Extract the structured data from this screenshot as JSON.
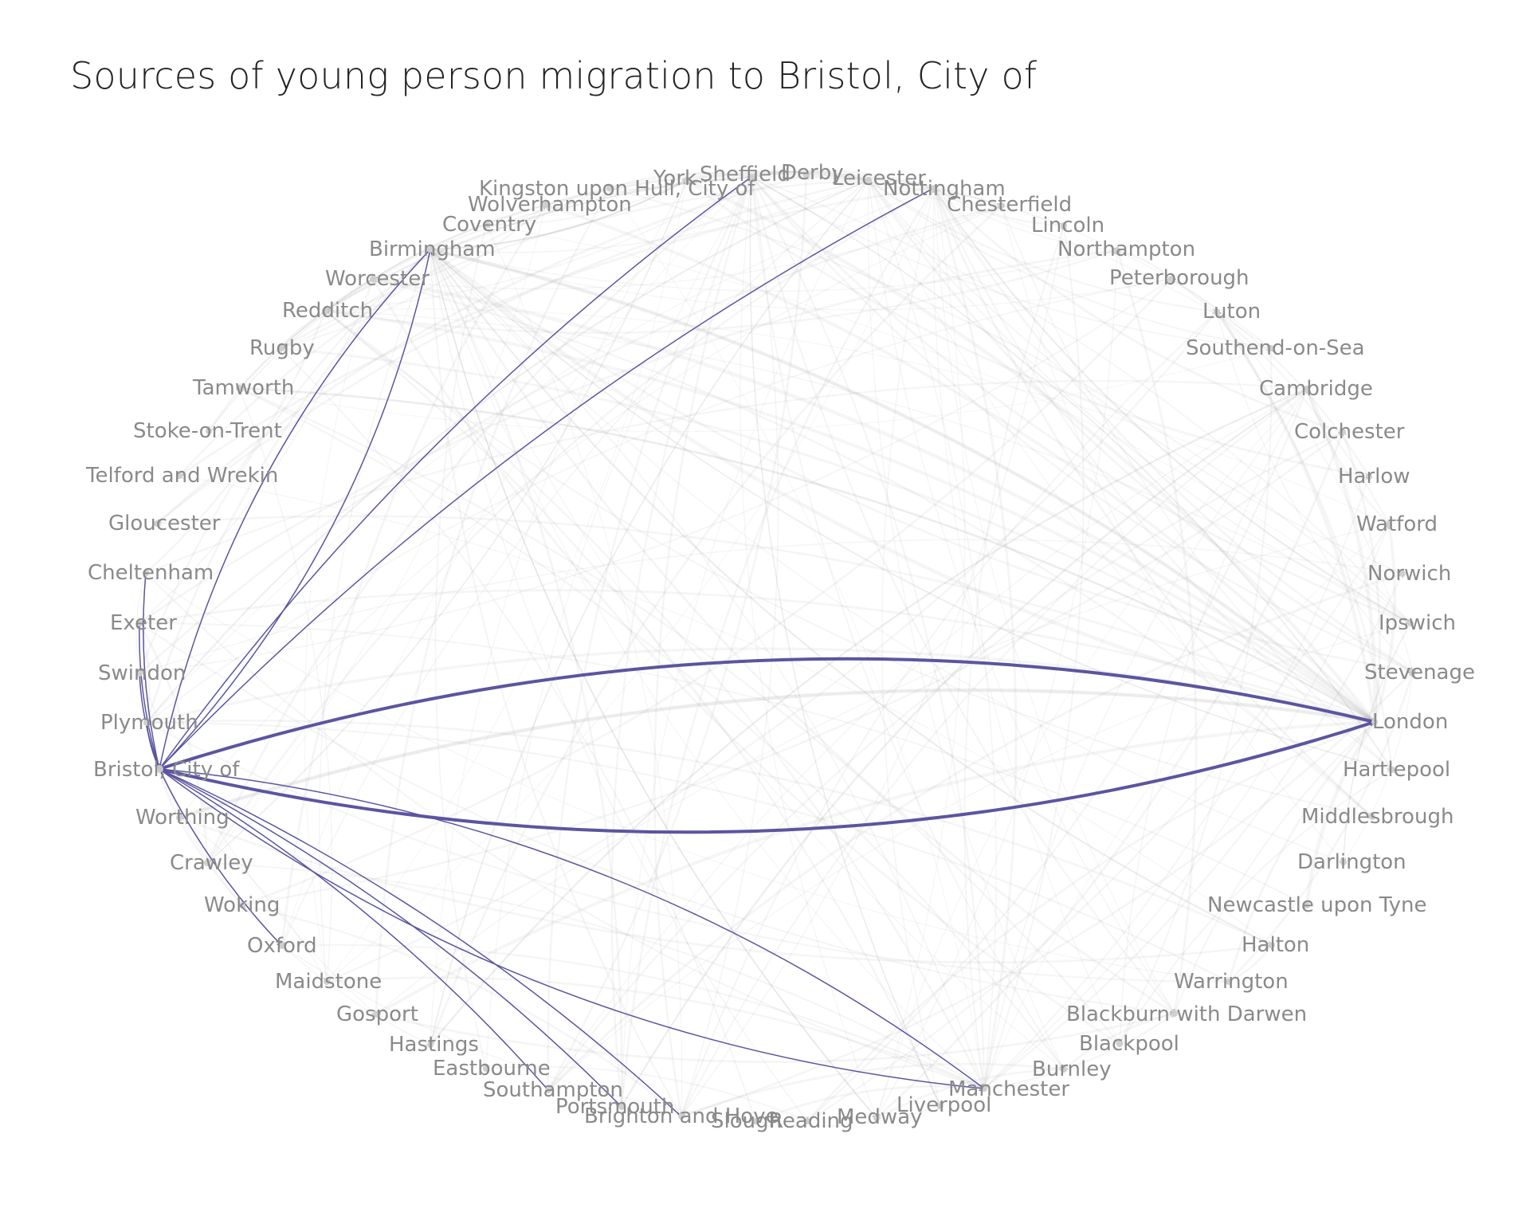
{
  "title": "Sources of young person migration to Bristol, City of",
  "focus_node": "Bristol, City of",
  "colors": {
    "highlight": "#5b55a0",
    "background_edge": "#9a9a9a",
    "label": "#8a8a8a",
    "node": "#cfcfcf"
  },
  "nodes": [
    "York",
    "Sheffield",
    "Derby",
    "Leicester",
    "Nottingham",
    "Chesterfield",
    "Lincoln",
    "Northampton",
    "Peterborough",
    "Luton",
    "Southend-on-Sea",
    "Cambridge",
    "Colchester",
    "Harlow",
    "Watford",
    "Norwich",
    "Ipswich",
    "Stevenage",
    "London",
    "Hartlepool",
    "Middlesbrough",
    "Darlington",
    "Newcastle upon Tyne",
    "Halton",
    "Warrington",
    "Blackburn with Darwen",
    "Blackpool",
    "Burnley",
    "Manchester",
    "Liverpool",
    "Medway",
    "Reading",
    "Slough",
    "Brighton and Hove",
    "Portsmouth",
    "Southampton",
    "Eastbourne",
    "Hastings",
    "Gosport",
    "Maidstone",
    "Oxford",
    "Woking",
    "Crawley",
    "Worthing",
    "Bristol, City of",
    "Plymouth",
    "Swindon",
    "Exeter",
    "Cheltenham",
    "Gloucester",
    "Telford and Wrekin",
    "Stoke-on-Trent",
    "Tamworth",
    "Rugby",
    "Redditch",
    "Worcester",
    "Birmingham",
    "Coventry",
    "Wolverhampton",
    "Kingston upon Hull, City of"
  ],
  "highlight_edges": [
    {
      "from": "London",
      "to": "Bristol, City of",
      "weight": 4
    },
    {
      "from": "Bristol, City of",
      "to": "London",
      "weight": 4
    },
    {
      "from": "Birmingham",
      "to": "Bristol, City of",
      "weight": 1.5
    },
    {
      "from": "Bristol, City of",
      "to": "Birmingham",
      "weight": 1.5
    },
    {
      "from": "Sheffield",
      "to": "Bristol, City of",
      "weight": 1.5
    },
    {
      "from": "Nottingham",
      "to": "Bristol, City of",
      "weight": 1.5
    },
    {
      "from": "Cheltenham",
      "to": "Bristol, City of",
      "weight": 1.5
    },
    {
      "from": "Exeter",
      "to": "Bristol, City of",
      "weight": 1.5
    },
    {
      "from": "Swindon",
      "to": "Bristol, City of",
      "weight": 1.5
    },
    {
      "from": "Plymouth",
      "to": "Bristol, City of",
      "weight": 1.5
    },
    {
      "from": "Bristol, City of",
      "to": "Oxford",
      "weight": 1.5
    },
    {
      "from": "Bristol, City of",
      "to": "Manchester",
      "weight": 1.5
    },
    {
      "from": "Manchester",
      "to": "Bristol, City of",
      "weight": 1.5
    },
    {
      "from": "Southampton",
      "to": "Bristol, City of",
      "weight": 1.5
    },
    {
      "from": "Brighton and Hove",
      "to": "Bristol, City of",
      "weight": 1.5
    },
    {
      "from": "Portsmouth",
      "to": "Bristol, City of",
      "weight": 1.5
    }
  ]
}
